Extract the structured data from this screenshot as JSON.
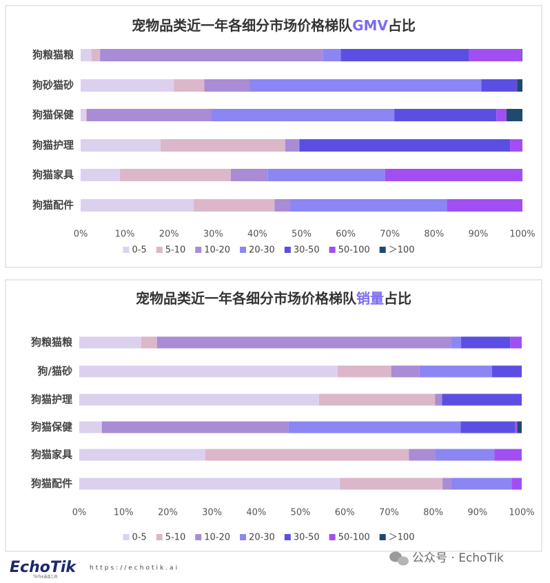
{
  "chart_data": [
    {
      "type": "bar",
      "orientation": "horizontal",
      "stacked": true,
      "title": [
        "宠物品类近一年各细分市场价格梯队",
        "GMV",
        "占比"
      ],
      "categories": [
        "狗粮猫粮",
        "狗砂猫砂",
        "狗猫保健",
        "狗猫护理",
        "狗猫家具",
        "狗猫配件"
      ],
      "series": [
        {
          "name": "0-5",
          "color": "#dcd0ef",
          "values": [
            2.5,
            21.1,
            1.2,
            18.1,
            8.9,
            25.6
          ]
        },
        {
          "name": "5-10",
          "color": "#dbb7c9",
          "values": [
            1.9,
            6.9,
            0.2,
            28.2,
            25.1,
            18.3
          ]
        },
        {
          "name": "10-20",
          "color": "#a98bd6",
          "values": [
            50.4,
            10.3,
            28.1,
            3.1,
            8.4,
            3.6
          ]
        },
        {
          "name": "20-30",
          "color": "#8b86f3",
          "values": [
            4.1,
            52.4,
            41.5,
            0.1,
            26.5,
            35.4
          ]
        },
        {
          "name": "30-50",
          "color": "#5b4fe3",
          "values": [
            29.0,
            8.1,
            23.1,
            47.7,
            0,
            0
          ]
        },
        {
          "name": "50-100",
          "color": "#a14ff3",
          "values": [
            12.0,
            0,
            2.3,
            2.8,
            31.1,
            17.1
          ]
        },
        {
          "name": "＞100",
          "color": "#1f4a6e",
          "values": [
            0.1,
            1.2,
            3.6,
            0,
            0,
            0
          ]
        }
      ],
      "xlim": [
        0,
        100
      ],
      "xticks": [
        {
          "value": 0,
          "label": "0%"
        },
        {
          "value": 10,
          "label": "10%"
        },
        {
          "value": 20,
          "label": "20%"
        },
        {
          "value": 30,
          "label": "30%"
        },
        {
          "value": 40,
          "label": "40%"
        },
        {
          "value": 50,
          "label": "50%"
        },
        {
          "value": 60,
          "label": "60%"
        },
        {
          "value": 70,
          "label": "70%"
        },
        {
          "value": 80,
          "label": "80%"
        },
        {
          "value": 90,
          "label": "90%"
        },
        {
          "value": 100,
          "label": "100%"
        }
      ],
      "grid": false,
      "legend": "bottom"
    },
    {
      "type": "bar",
      "orientation": "horizontal",
      "stacked": true,
      "title": [
        "宠物品类近一年各细分市场价格梯队",
        "销量",
        "占比"
      ],
      "categories": [
        "狗粮猫粮",
        "狗/猫砂",
        "狗猫护理",
        "狗猫保健",
        "狗猫家具",
        "狗猫配件"
      ],
      "series": [
        {
          "name": "0-5",
          "color": "#dcd0ef",
          "values": [
            14.0,
            58.4,
            54.2,
            5.1,
            28.5,
            58.9
          ]
        },
        {
          "name": "5-10",
          "color": "#dbb7c9",
          "values": [
            3.6,
            12.1,
            26.2,
            0,
            46.0,
            23.2
          ]
        },
        {
          "name": "10-20",
          "color": "#a98bd6",
          "values": [
            66.4,
            6.4,
            1.6,
            42.2,
            5.9,
            2.0
          ]
        },
        {
          "name": "20-30",
          "color": "#8b86f3",
          "values": [
            2.3,
            16.4,
            0,
            38.9,
            13.4,
            13.6
          ]
        },
        {
          "name": "30-50",
          "color": "#5b4fe3",
          "values": [
            11.1,
            6.7,
            18.0,
            12.3,
            0,
            0
          ]
        },
        {
          "name": "50-100",
          "color": "#a14ff3",
          "values": [
            2.6,
            0,
            0,
            0.5,
            6.2,
            2.3
          ]
        },
        {
          "name": "＞100",
          "color": "#1f4a6e",
          "values": [
            0,
            0,
            0,
            1.0,
            0,
            0
          ]
        }
      ],
      "xlim": [
        0,
        100
      ],
      "xticks": [
        {
          "value": 0,
          "label": "0%"
        },
        {
          "value": 10,
          "label": "10%"
        },
        {
          "value": 20,
          "label": "20%"
        },
        {
          "value": 30,
          "label": "30%"
        },
        {
          "value": 40,
          "label": "40%"
        },
        {
          "value": 50,
          "label": "50%"
        },
        {
          "value": 60,
          "label": "60%"
        },
        {
          "value": 70,
          "label": "70%"
        },
        {
          "value": 80,
          "label": "80%"
        },
        {
          "value": 90,
          "label": "90%"
        },
        {
          "value": 100,
          "label": "100%"
        }
      ],
      "grid": false,
      "legend": "bottom"
    }
  ],
  "footer": {
    "logo": "EchoTik",
    "logo_sub": "TikTok选品工具",
    "url": "https://echotik.ai",
    "watermark": "公众号 · EchoTik"
  }
}
